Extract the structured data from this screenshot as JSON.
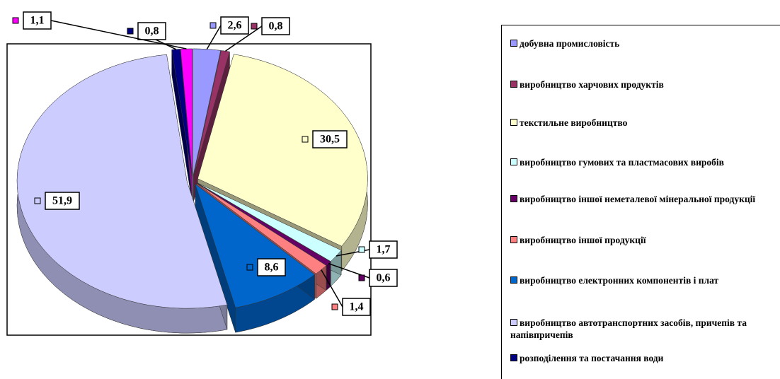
{
  "chart_data": {
    "type": "pie",
    "categories": [
      "добувна промисловість",
      "виробництво харчових продуктів",
      "текстильне виробництво",
      "виробництво гумових та пластмасових виробів",
      "виробництво іншої неметалевої мінеральної продукції",
      "виробництво іншої продукції",
      "виробництво електронних компонентів і плат",
      "виробництво автотранспортних засобів, причепів та напівпричепів",
      "розподілення та постачання води",
      null
    ],
    "values": [
      2.6,
      0.8,
      30.5,
      1.7,
      0.6,
      1.4,
      8.6,
      51.9,
      0.8,
      1.1
    ],
    "value_labels": [
      "2,6",
      "0,8",
      "30,5",
      "1,7",
      "0,6",
      "1,4",
      "8,6",
      "51,9",
      "0,8",
      "1,1"
    ],
    "colors": [
      "#9999ff",
      "#993366",
      "#ffffcc",
      "#ccffff",
      "#660066",
      "#ff8080",
      "#0066cc",
      "#ccccff",
      "#000080",
      "#ff00ff"
    ],
    "legend": "right"
  }
}
